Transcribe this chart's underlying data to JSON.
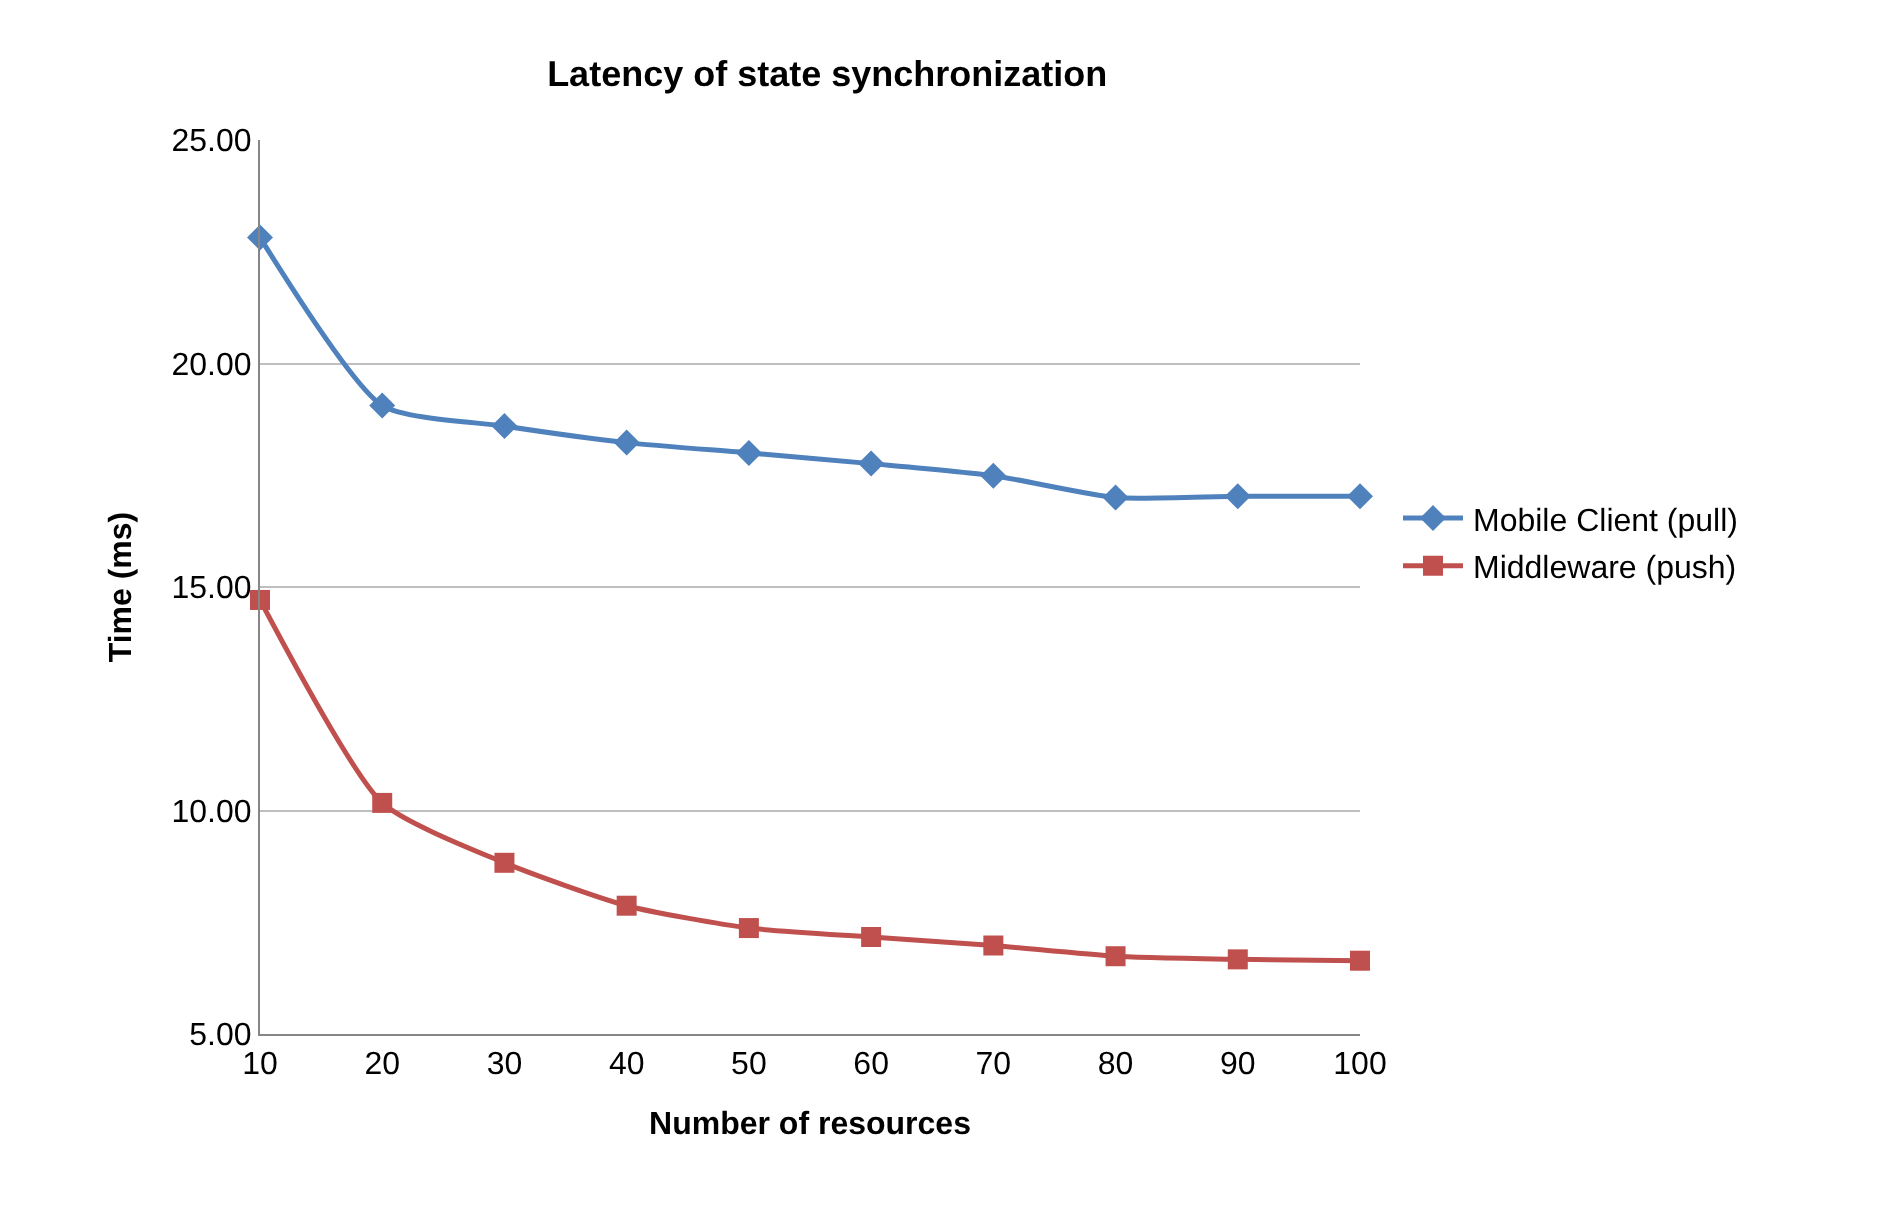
{
  "chart_data": {
    "type": "line",
    "title": "Latency of state synchronization",
    "xlabel": "Number of resources",
    "ylabel": "Time (ms)",
    "categories": [
      "10",
      "20",
      "30",
      "40",
      "50",
      "60",
      "70",
      "80",
      "90",
      "100"
    ],
    "series": [
      {
        "name": "Mobile Client (pull)",
        "color": "#4f81bd",
        "marker": "diamond",
        "values": [
          22.82,
          19.06,
          18.6,
          18.23,
          18.0,
          17.76,
          17.49,
          17.0,
          17.03,
          17.03
        ]
      },
      {
        "name": "Middleware (push)",
        "color": "#c0504d",
        "marker": "square",
        "values": [
          14.71,
          10.17,
          8.83,
          7.87,
          7.37,
          7.17,
          6.98,
          6.74,
          6.67,
          6.64
        ]
      }
    ],
    "ylim": [
      5,
      25
    ],
    "yticks": [
      {
        "value": 5,
        "label": "5.00"
      },
      {
        "value": 10,
        "label": "10.00"
      },
      {
        "value": 15,
        "label": "15.00"
      },
      {
        "value": 20,
        "label": "20.00"
      },
      {
        "value": 25,
        "label": "25.00"
      }
    ],
    "grid": "y",
    "legend": "right",
    "line_style": "solid"
  }
}
